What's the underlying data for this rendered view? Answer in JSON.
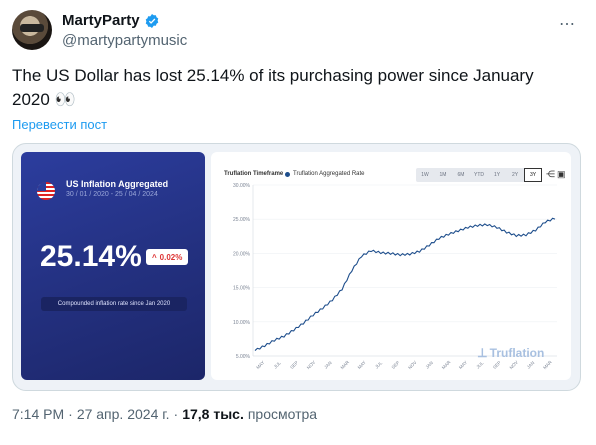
{
  "tweet": {
    "display_name": "MartyParty",
    "handle": "@martypartymusic",
    "verified_icon": "verified-badge-icon",
    "more_icon": "more-dots-icon",
    "text": "The US Dollar has lost 25.14% of its purchasing power since January 2020 👀",
    "translate_label": "Перевести пост",
    "time": "7:14 PM",
    "date": "27 апр. 2024 г.",
    "views_count": "17,8 тыс.",
    "views_label": "просмотра",
    "separator": "·"
  },
  "card": {
    "title": "US Inflation Aggregated",
    "dates": "30 / 01 / 2020 - 25 / 04 / 2024",
    "value": "25.14%",
    "delta": "0.02%",
    "caption": "Compounded inflation rate since Jan 2020"
  },
  "chart_header": {
    "timeframe_label": "Truflation Timeframe",
    "series_label": "Truflation Aggregated Rate",
    "buttons": [
      "1W",
      "1M",
      "6M",
      "YTD",
      "1Y",
      "2Y",
      "3Y"
    ],
    "active_button": "3Y",
    "watermark": "Truflation"
  },
  "chart_data": {
    "type": "line",
    "ylim": [
      5,
      30
    ],
    "yticks": [
      "30.00%",
      "25.00%",
      "20.00%",
      "15.00%",
      "10.00%",
      "5.00%"
    ],
    "xticks": [
      "MAY",
      "JUL",
      "SEP",
      "NOV",
      "JAN",
      "MAR",
      "MAY",
      "JUL",
      "SEP",
      "NOV",
      "JAN",
      "MAR",
      "MAY",
      "JUL",
      "SEP",
      "NOV",
      "JAN",
      "MAR"
    ],
    "series": [
      {
        "values": [
          5.8,
          6.5,
          7.3,
          7.9,
          8.8,
          9.8,
          11.0,
          12.0,
          13.2,
          14.8,
          17.5,
          19.6,
          20.4,
          20.1,
          20.0,
          19.8,
          19.9,
          20.3,
          21.2,
          22.2,
          22.8,
          23.3,
          23.8,
          24.1,
          24.2,
          23.8,
          23.1,
          22.6,
          22.7,
          23.4,
          24.6,
          25.14
        ]
      }
    ],
    "color": "#1e4e8c"
  }
}
